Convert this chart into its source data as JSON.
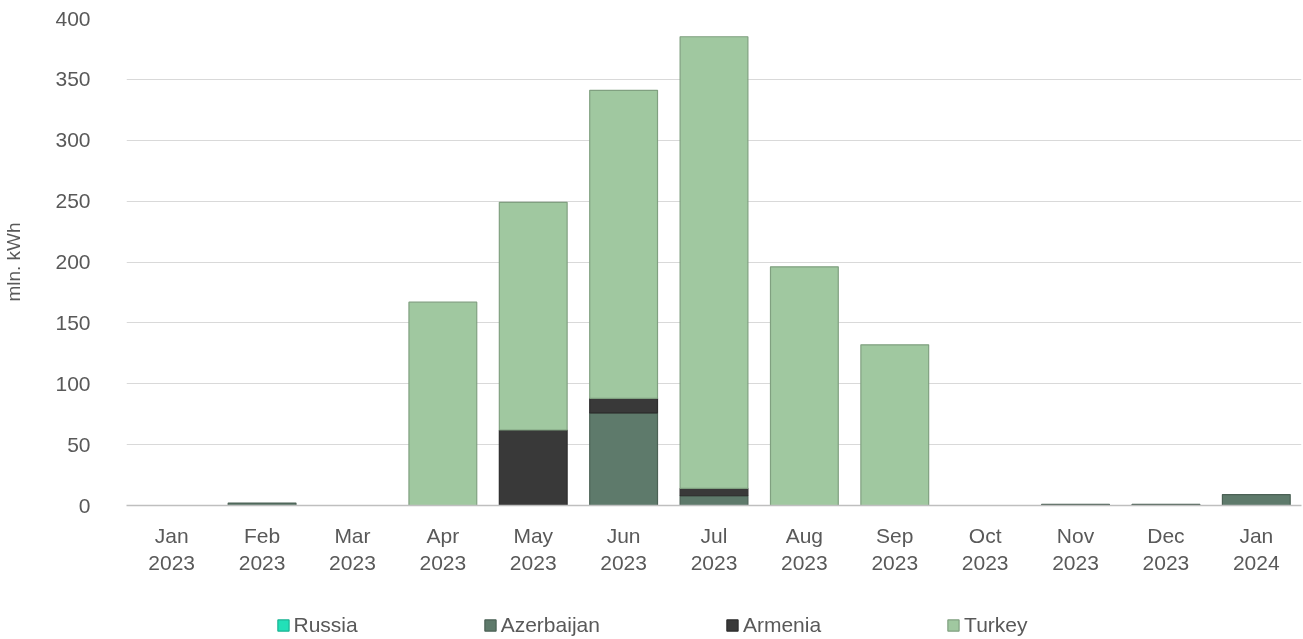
{
  "chart_data": {
    "type": "bar",
    "stacked": true,
    "ylabel": "mln. kWh",
    "categories": [
      "Jan 2023",
      "Feb 2023",
      "Mar 2023",
      "Apr 2023",
      "May 2023",
      "Jun 2023",
      "Jul 2023",
      "Aug 2023",
      "Sep 2023",
      "Oct 2023",
      "Nov 2023",
      "Dec 2023",
      "Jan 2024"
    ],
    "series": [
      {
        "name": "Russia",
        "color": "#22e0b8",
        "values": [
          null,
          null,
          null,
          null,
          null,
          null,
          null,
          null,
          null,
          null,
          null,
          null,
          null
        ]
      },
      {
        "name": "Azerbaijan",
        "color": "#5e7a6b",
        "values": [
          null,
          2,
          null,
          null,
          null,
          76,
          8,
          null,
          null,
          null,
          1,
          1,
          9
        ]
      },
      {
        "name": "Armenia",
        "color": "#393939",
        "values": [
          null,
          null,
          null,
          null,
          62,
          12,
          6,
          null,
          null,
          null,
          null,
          null,
          null
        ]
      },
      {
        "name": "Turkey",
        "color": "#a0c8a0",
        "values": [
          null,
          null,
          null,
          167,
          187,
          253,
          371,
          196,
          132,
          null,
          null,
          null,
          null
        ]
      }
    ],
    "ylim": [
      0,
      400
    ],
    "yticks": [
      0,
      50,
      100,
      150,
      200,
      250,
      300,
      350,
      400
    ],
    "grid": "y",
    "legend": "bottom"
  }
}
